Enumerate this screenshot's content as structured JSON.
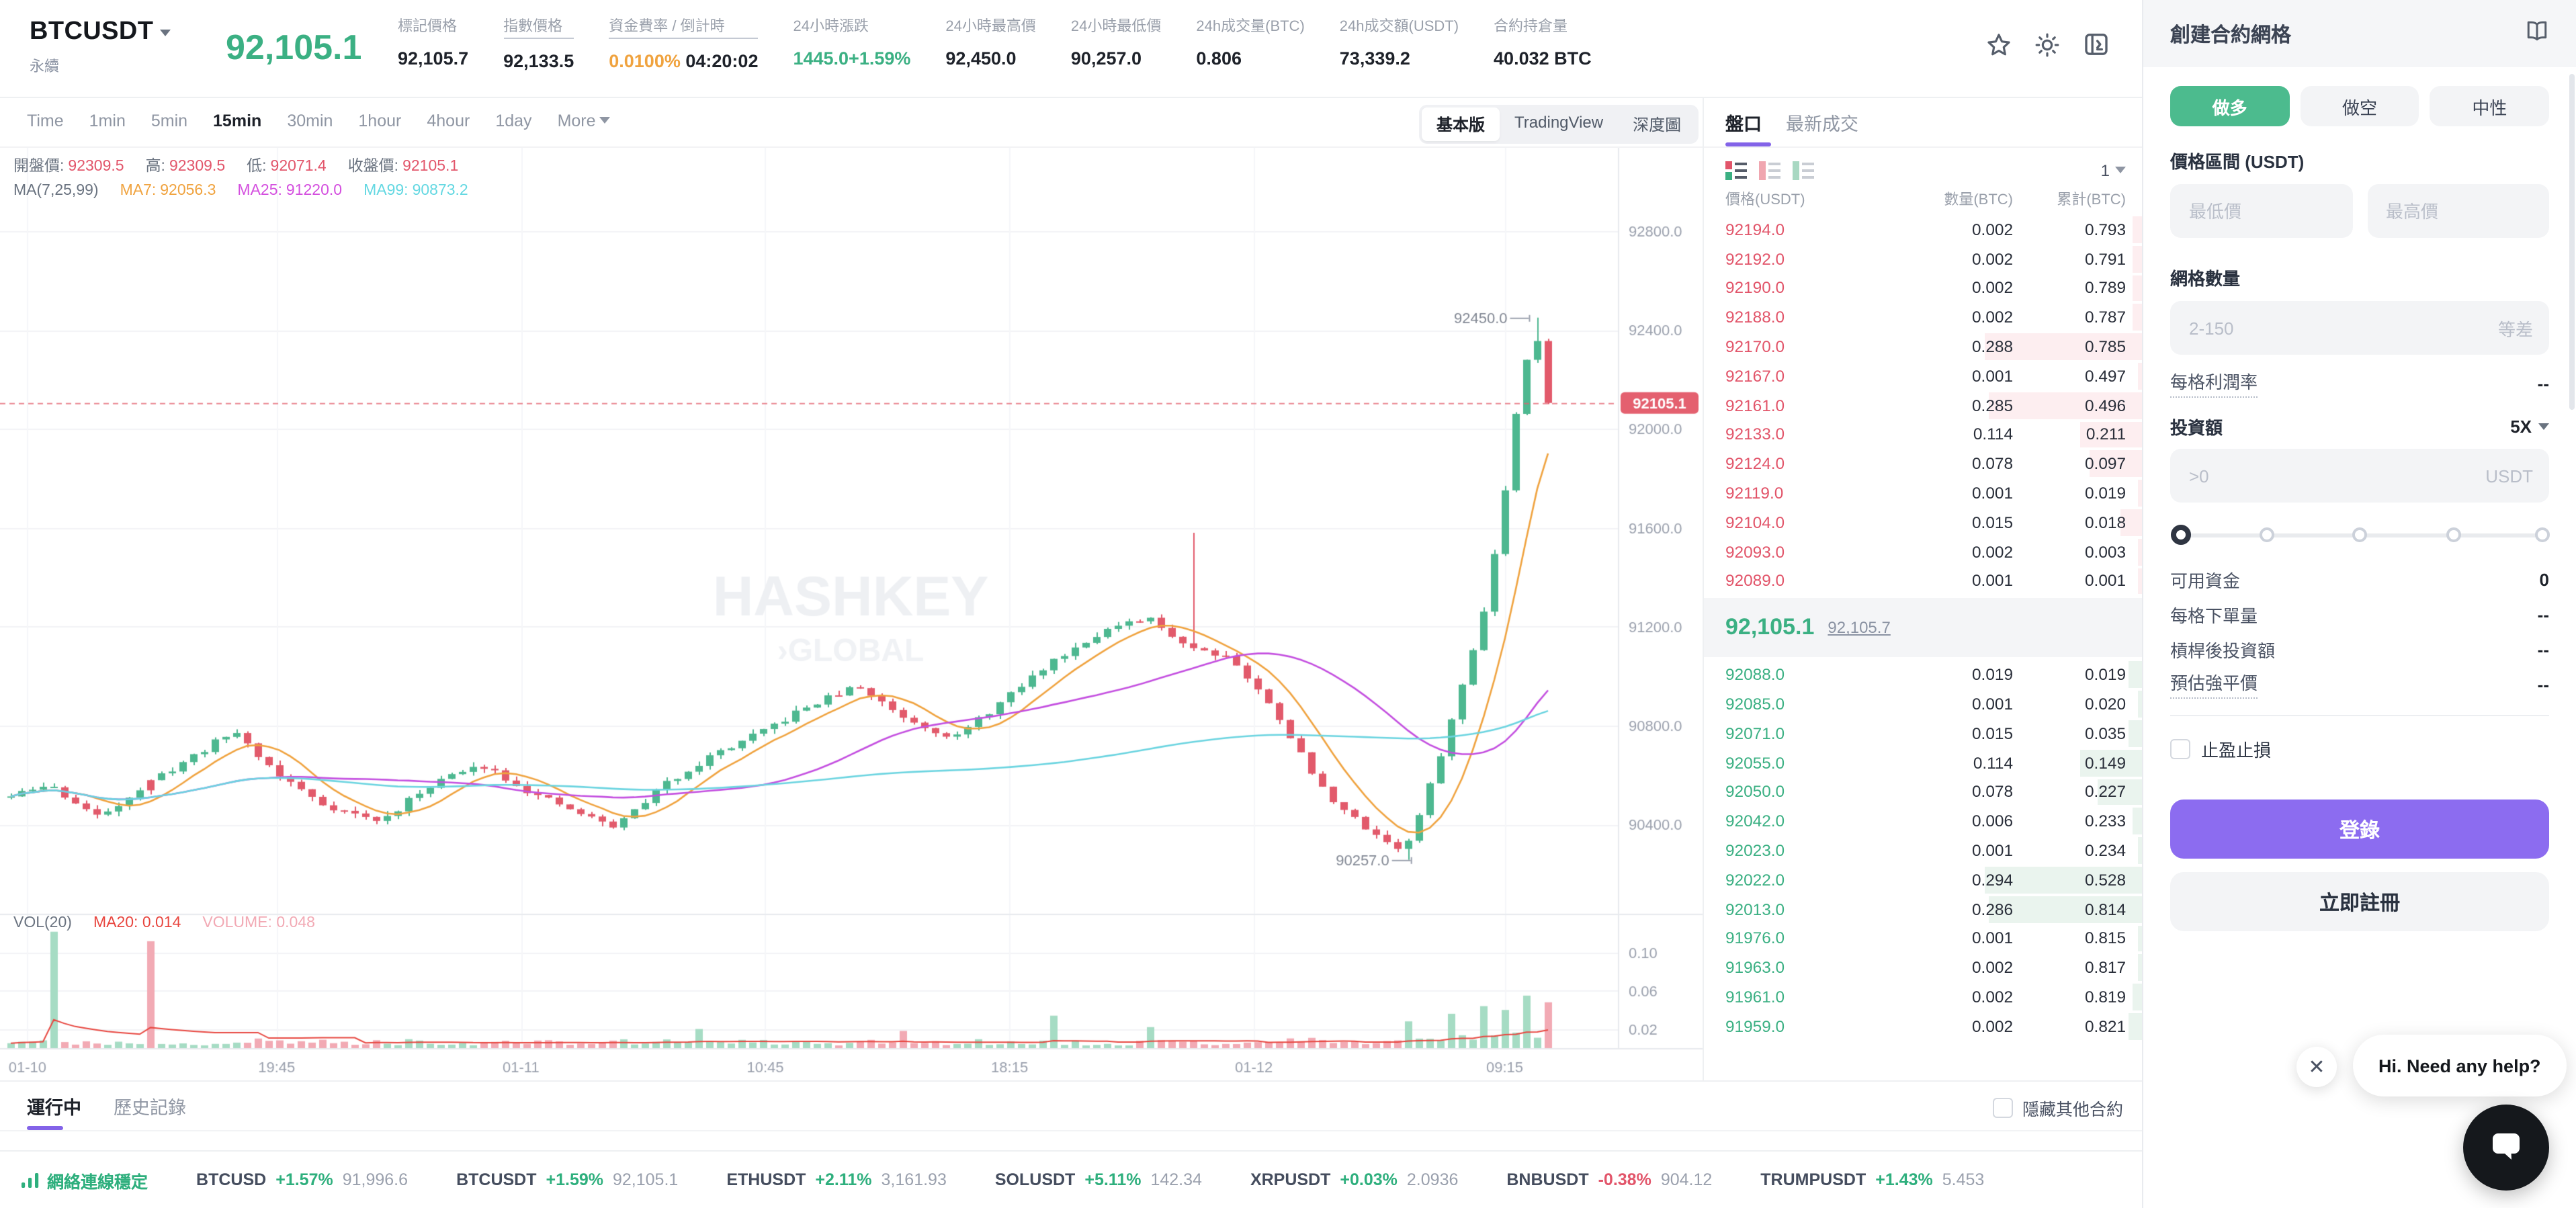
{
  "header": {
    "symbol": "BTCUSDT",
    "market_type": "永續",
    "last_price": "92,105.1",
    "stats": [
      {
        "label": "標記價格",
        "value": "92,105.7"
      },
      {
        "label": "指數價格",
        "value": "92,133.5",
        "underline": true
      },
      {
        "label": "資金費率 / 倒計時",
        "value": "0.0100%",
        "value2": "04:20:02",
        "value_color": "orange",
        "underline": true
      },
      {
        "label": "24小時漲跌",
        "value": "1445.0+1.59%",
        "value_color": "green"
      },
      {
        "label": "24小時最高價",
        "value": "92,450.0"
      },
      {
        "label": "24小時最低價",
        "value": "90,257.0"
      },
      {
        "label": "24h成交量(BTC)",
        "value": "0.806"
      },
      {
        "label": "24h成交額(USDT)",
        "value": "73,339.2"
      },
      {
        "label": "合約持倉量",
        "value": "40.032 BTC"
      }
    ]
  },
  "chart_toolbar": {
    "timeframes": [
      "Time",
      "1min",
      "5min",
      "15min",
      "30min",
      "1hour",
      "4hour",
      "1day",
      "More"
    ],
    "selected": "15min",
    "view_tabs": [
      "基本版",
      "TradingView",
      "深度圖"
    ],
    "selected_view": "基本版"
  },
  "chart_legend": {
    "ohlc": [
      {
        "label": "開盤價:",
        "value": "92309.5"
      },
      {
        "label": "高:",
        "value": "92309.5"
      },
      {
        "label": "低:",
        "value": "92071.4"
      },
      {
        "label": "收盤價:",
        "value": "92105.1"
      }
    ],
    "ma_title": "MA(7,25,99)",
    "mas": [
      {
        "label": "MA7:",
        "value": "92056.3",
        "key": "ma7"
      },
      {
        "label": "MA25:",
        "value": "91220.0",
        "key": "ma25"
      },
      {
        "label": "MA99:",
        "value": "90873.2",
        "key": "ma99"
      }
    ],
    "vol_title": "VOL(20)",
    "vol_ma_label": "MA20:",
    "vol_ma_value": "0.014",
    "vol_label": "VOLUME:",
    "vol_value": "0.048"
  },
  "chart_data": {
    "type": "candlestick",
    "symbol": "BTCUSDT",
    "interval": "15min",
    "last_price": 92105.1,
    "ohlc": {
      "open": 92309.5,
      "high": 92309.5,
      "low": 92071.4,
      "close": 92105.1
    },
    "ma": {
      "ma7": 92056.3,
      "ma25": 91220.0,
      "ma99": 90873.2
    },
    "y_ticks": [
      92800,
      92400,
      92000,
      91600,
      91200,
      90800,
      90400
    ],
    "x_ticks": [
      {
        "label": "01-10",
        "pos": 0.017
      },
      {
        "label": "19:45",
        "pos": 0.171
      },
      {
        "label": "01-11",
        "pos": 0.322
      },
      {
        "label": "10:45",
        "pos": 0.473
      },
      {
        "label": "18:15",
        "pos": 0.624
      },
      {
        "label": "01-12",
        "pos": 0.775
      },
      {
        "label": "09:15",
        "pos": 0.93
      }
    ],
    "annotations": [
      {
        "text": "92450.0",
        "price": 92450,
        "pos": 0.935
      },
      {
        "text": "90257.0",
        "price": 90257,
        "pos": 0.862
      }
    ],
    "price_path": [
      [
        0,
        90500
      ],
      [
        0.03,
        90560
      ],
      [
        0.06,
        90430
      ],
      [
        0.1,
        90600
      ],
      [
        0.145,
        90780
      ],
      [
        0.17,
        90610
      ],
      [
        0.2,
        90480
      ],
      [
        0.235,
        90410
      ],
      [
        0.27,
        90580
      ],
      [
        0.3,
        90640
      ],
      [
        0.33,
        90520
      ],
      [
        0.36,
        90440
      ],
      [
        0.38,
        90390
      ],
      [
        0.41,
        90560
      ],
      [
        0.44,
        90680
      ],
      [
        0.47,
        90770
      ],
      [
        0.5,
        90880
      ],
      [
        0.53,
        90960
      ],
      [
        0.56,
        90830
      ],
      [
        0.59,
        90750
      ],
      [
        0.62,
        90900
      ],
      [
        0.65,
        91060
      ],
      [
        0.68,
        91180
      ],
      [
        0.71,
        91230
      ],
      [
        0.735,
        91120
      ],
      [
        0.76,
        91080
      ],
      [
        0.79,
        90840
      ],
      [
        0.815,
        90560
      ],
      [
        0.835,
        90430
      ],
      [
        0.855,
        90340
      ],
      [
        0.868,
        90290
      ],
      [
        0.882,
        90520
      ],
      [
        0.895,
        90780
      ],
      [
        0.908,
        91050
      ],
      [
        0.92,
        91350
      ],
      [
        0.93,
        91750
      ],
      [
        0.94,
        92200
      ],
      [
        0.949,
        92430
      ],
      [
        0.955,
        92105
      ],
      [
        1,
        92105
      ]
    ],
    "wick_events": [
      {
        "pos": 0.735,
        "high": 91580
      },
      {
        "pos": 0.868,
        "low": 90257
      },
      {
        "pos": 0.949,
        "high": 92450
      }
    ],
    "volume": {
      "ma20": 0.014,
      "last": 0.048,
      "ticks": [
        0.1,
        0.06,
        0.02
      ],
      "spikes": [
        {
          "pos": 0.03,
          "v": 0.122,
          "dir": "up"
        },
        {
          "pos": 0.096,
          "v": 0.112,
          "dir": "down"
        },
        {
          "pos": 0.43,
          "v": 0.02,
          "dir": "up"
        },
        {
          "pos": 0.56,
          "v": 0.018,
          "dir": "down"
        },
        {
          "pos": 0.65,
          "v": 0.034,
          "dir": "up"
        },
        {
          "pos": 0.71,
          "v": 0.022,
          "dir": "up"
        },
        {
          "pos": 0.87,
          "v": 0.028,
          "dir": "up"
        },
        {
          "pos": 0.895,
          "v": 0.036,
          "dir": "up"
        },
        {
          "pos": 0.915,
          "v": 0.044,
          "dir": "up"
        },
        {
          "pos": 0.932,
          "v": 0.04,
          "dir": "up"
        },
        {
          "pos": 0.943,
          "v": 0.055,
          "dir": "up"
        },
        {
          "pos": 0.955,
          "v": 0.048,
          "dir": "down"
        }
      ]
    },
    "watermark": [
      "HASHKEY",
      "GLOBAL"
    ]
  },
  "orderbook": {
    "tabs": [
      {
        "label": "盤口",
        "selected": true
      },
      {
        "label": "最新成交"
      }
    ],
    "precision": "1",
    "columns": [
      "價格(USDT)",
      "數量(BTC)",
      "累計(BTC)"
    ],
    "asks": [
      {
        "price": "92194.0",
        "amount": "0.002",
        "total": "0.793",
        "depth": 0.02
      },
      {
        "price": "92192.0",
        "amount": "0.002",
        "total": "0.791",
        "depth": 0.02
      },
      {
        "price": "92190.0",
        "amount": "0.002",
        "total": "0.789",
        "depth": 0.02
      },
      {
        "price": "92188.0",
        "amount": "0.002",
        "total": "0.787",
        "depth": 0.02
      },
      {
        "price": "92170.0",
        "amount": "0.288",
        "total": "0.785",
        "depth": 0.36
      },
      {
        "price": "92167.0",
        "amount": "0.001",
        "total": "0.497",
        "depth": 0.01
      },
      {
        "price": "92161.0",
        "amount": "0.285",
        "total": "0.496",
        "depth": 0.35
      },
      {
        "price": "92133.0",
        "amount": "0.114",
        "total": "0.211",
        "depth": 0.14
      },
      {
        "price": "92124.0",
        "amount": "0.078",
        "total": "0.097",
        "depth": 0.12
      },
      {
        "price": "92119.0",
        "amount": "0.001",
        "total": "0.019",
        "depth": 0.01
      },
      {
        "price": "92104.0",
        "amount": "0.015",
        "total": "0.018",
        "depth": 0.05
      },
      {
        "price": "92093.0",
        "amount": "0.002",
        "total": "0.003",
        "depth": 0.01
      },
      {
        "price": "92089.0",
        "amount": "0.001",
        "total": "0.001",
        "depth": 0.01
      }
    ],
    "mid": {
      "price": "92,105.1",
      "mark": "92,105.7"
    },
    "bids": [
      {
        "price": "92088.0",
        "amount": "0.019",
        "total": "0.019",
        "depth": 0.03
      },
      {
        "price": "92085.0",
        "amount": "0.001",
        "total": "0.020",
        "depth": 0.01
      },
      {
        "price": "92071.0",
        "amount": "0.015",
        "total": "0.035",
        "depth": 0.03
      },
      {
        "price": "92055.0",
        "amount": "0.114",
        "total": "0.149",
        "depth": 0.14
      },
      {
        "price": "92050.0",
        "amount": "0.078",
        "total": "0.227",
        "depth": 0.1
      },
      {
        "price": "92042.0",
        "amount": "0.006",
        "total": "0.233",
        "depth": 0.02
      },
      {
        "price": "92023.0",
        "amount": "0.001",
        "total": "0.234",
        "depth": 0.01
      },
      {
        "price": "92022.0",
        "amount": "0.294",
        "total": "0.528",
        "depth": 0.36
      },
      {
        "price": "92013.0",
        "amount": "0.286",
        "total": "0.814",
        "depth": 0.35
      },
      {
        "price": "91976.0",
        "amount": "0.001",
        "total": "0.815",
        "depth": 0.01
      },
      {
        "price": "91963.0",
        "amount": "0.002",
        "total": "0.817",
        "depth": 0.01
      },
      {
        "price": "91961.0",
        "amount": "0.002",
        "total": "0.819",
        "depth": 0.02
      },
      {
        "price": "91959.0",
        "amount": "0.002",
        "total": "0.821",
        "depth": 0.03
      }
    ]
  },
  "grid_panel": {
    "title": "創建合約網格",
    "side_tabs": [
      {
        "label": "做多",
        "selected": true
      },
      {
        "label": "做空"
      },
      {
        "label": "中性"
      }
    ],
    "price_range_label": "價格區間 (USDT)",
    "min_placeholder": "最低價",
    "max_placeholder": "最高價",
    "grid_count_label": "網格數量",
    "grid_count_placeholder": "2-150",
    "grid_mode": "等差",
    "profit_label": "每格利潤率",
    "profit_value": "--",
    "invest_label": "投資額",
    "leverage": "5X",
    "invest_placeholder": ">0",
    "invest_unit": "USDT",
    "info_rows": [
      {
        "label": "可用資金",
        "value": "0"
      },
      {
        "label": "每格下單量",
        "value": "--"
      },
      {
        "label": "槓桿後投資額",
        "value": "--"
      },
      {
        "label": "預估強平價",
        "value": "--",
        "dotted": true
      }
    ],
    "tpsl_label": "止盈止損",
    "login_label": "登錄",
    "register_label": "立即註冊"
  },
  "bottom": {
    "tabs": [
      {
        "label": "運行中",
        "selected": true
      },
      {
        "label": "歷史記錄"
      }
    ],
    "hide_label": "隱藏其他合約"
  },
  "ticker": {
    "status": "網絡連線穩定",
    "items": [
      {
        "symbol": "BTCUSD",
        "change": "+1.57%",
        "price": "91,996.6",
        "dir": "up"
      },
      {
        "symbol": "BTCUSDT",
        "change": "+1.59%",
        "price": "92,105.1",
        "dir": "up"
      },
      {
        "symbol": "ETHUSDT",
        "change": "+2.11%",
        "price": "3,161.93",
        "dir": "up"
      },
      {
        "symbol": "SOLUSDT",
        "change": "+5.11%",
        "price": "142.34",
        "dir": "up"
      },
      {
        "symbol": "XRPUSDT",
        "change": "+0.03%",
        "price": "2.0936",
        "dir": "up"
      },
      {
        "symbol": "BNBUSDT",
        "change": "-0.38%",
        "price": "904.12",
        "dir": "down"
      },
      {
        "symbol": "TRUMPUSDT",
        "change": "+1.43%",
        "price": "5.453",
        "dir": "up"
      }
    ]
  },
  "chat": {
    "message": "Hi. Need any help?"
  },
  "colors": {
    "green": "#3bb083",
    "btn_green": "#4cbb8e",
    "red": "#e2556a",
    "orange": "#f0a33f",
    "purple": "#8c6cf0",
    "tab_purple": "#8363e8",
    "tag_red": "#e4606f",
    "ma7": "#f0a33f",
    "ma25": "#c44fe0",
    "ma99": "#6ad4e0"
  }
}
